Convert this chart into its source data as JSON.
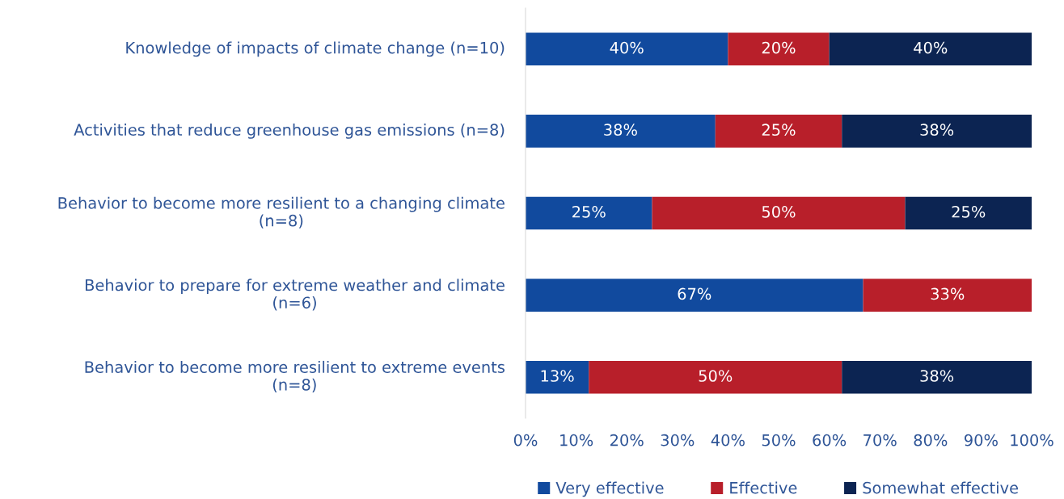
{
  "chart_data": {
    "type": "bar",
    "orientation": "horizontal",
    "stacked": true,
    "categories": [
      "Knowledge of impacts of climate change (n=10)",
      "Activities that reduce greenhouse gas emissions (n=8)",
      "Behavior to become more resilient to a changing climate\n(n=8)",
      "Behavior to prepare for extreme weather and climate\n(n=6)",
      "Behavior to become more resilient to extreme events\n(n=8)"
    ],
    "series": [
      {
        "name": "Very effective",
        "color": "#114a9e",
        "values": [
          40,
          37.5,
          25,
          66.7,
          12.5
        ],
        "value_labels": [
          "40%",
          "38%",
          "25%",
          "67%",
          "13%"
        ]
      },
      {
        "name": "Effective",
        "color": "#b81f2a",
        "values": [
          20,
          25,
          50,
          33.3,
          50
        ],
        "value_labels": [
          "20%",
          "25%",
          "50%",
          "33%",
          "50%"
        ]
      },
      {
        "name": "Somewhat effective",
        "color": "#0c2452",
        "values": [
          40,
          37.5,
          25,
          null,
          37.5
        ],
        "value_labels": [
          "40%",
          "38%",
          "25%",
          null,
          "38%"
        ]
      }
    ],
    "xlim": [
      0,
      100
    ],
    "xticks": [
      {
        "value": 0,
        "label": "0%"
      },
      {
        "value": 10,
        "label": "10%"
      },
      {
        "value": 20,
        "label": "20%"
      },
      {
        "value": 30,
        "label": "30%"
      },
      {
        "value": 40,
        "label": "40%"
      },
      {
        "value": 50,
        "label": "50%"
      },
      {
        "value": 60,
        "label": "60%"
      },
      {
        "value": 70,
        "label": "70%"
      },
      {
        "value": 80,
        "label": "80%"
      },
      {
        "value": 90,
        "label": "90%"
      },
      {
        "value": 100,
        "label": "100%"
      }
    ],
    "grid": false,
    "legend": "bottom"
  }
}
